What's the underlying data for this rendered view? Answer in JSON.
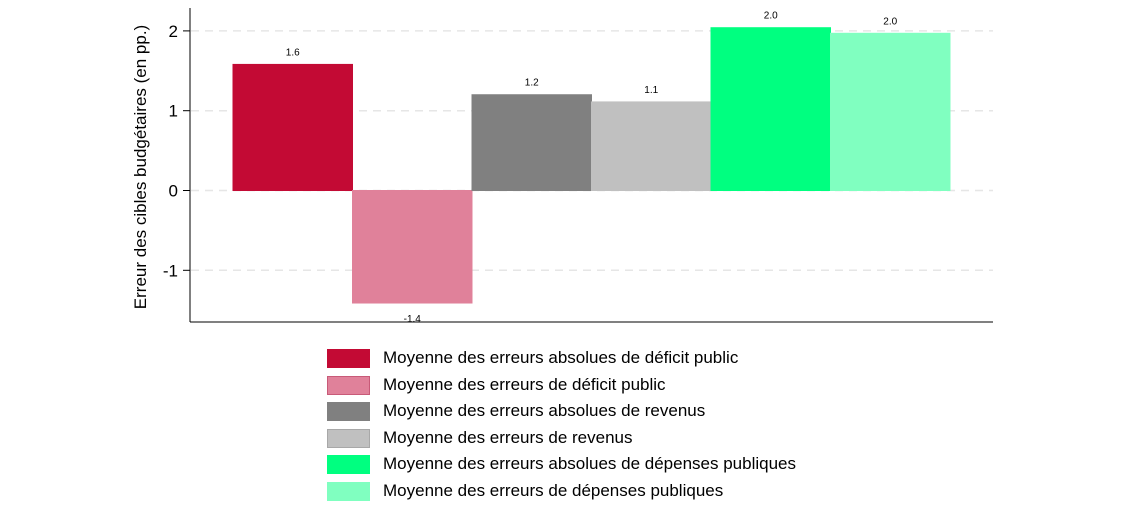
{
  "chart_data": {
    "type": "bar",
    "categories": [
      "Moyenne des erreurs absolues de déficit public",
      "Moyenne des erreurs de déficit public",
      "Moyenne des erreurs absolues de revenus",
      "Moyenne des erreurs de revenus",
      "Moyenne des erreurs absolues de dépenses publiques",
      "Moyenne des erreurs de dépenses publiques"
    ],
    "values": [
      1.58,
      -1.41,
      1.2,
      1.11,
      2.04,
      1.97
    ],
    "data_labels": [
      "1.6",
      "-1.4",
      "1.2",
      "1.1",
      "2.0",
      "2.0"
    ],
    "colors": [
      "#c30a34",
      "#e0819a",
      "#808080",
      "#c0c0c0",
      "#00ff80",
      "#80ffc0"
    ],
    "ylabel": "Erreur des cibles budgétaires (en pp.)",
    "ylim": [
      -1.65,
      2.25
    ],
    "yticks": [
      -1,
      0,
      1,
      2
    ],
    "ytick_labels": [
      "-1",
      "0",
      "1",
      "2"
    ],
    "grid": true,
    "legend_position": "bottom"
  }
}
